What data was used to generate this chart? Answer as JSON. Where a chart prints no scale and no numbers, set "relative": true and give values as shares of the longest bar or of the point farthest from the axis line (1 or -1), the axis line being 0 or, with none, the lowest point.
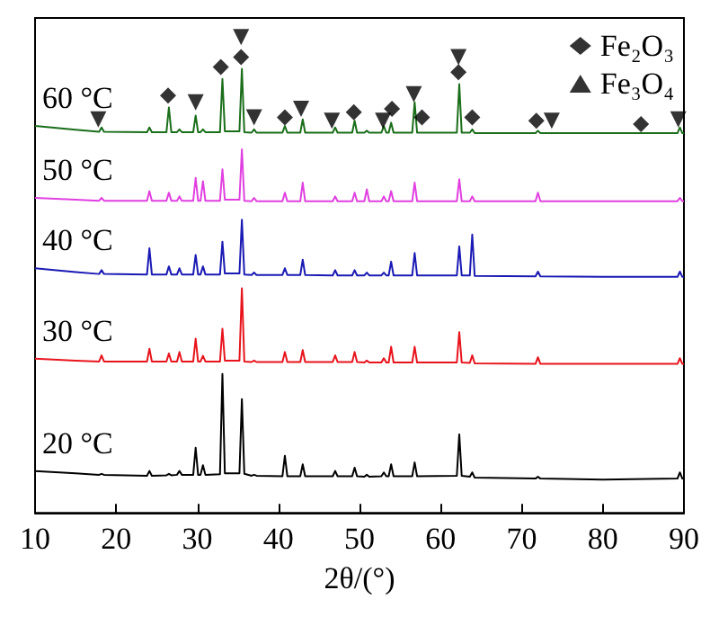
{
  "chart_data": {
    "type": "line",
    "xlabel": "2θ/(°)",
    "relative": true,
    "xlim": [
      10,
      90
    ],
    "xticks": [
      10,
      20,
      30,
      40,
      50,
      60,
      70,
      80,
      90
    ],
    "grid": false,
    "legend": "top right",
    "x": [
      10,
      15,
      17.9,
      18.2,
      18.5,
      23.8,
      24.1,
      24.4,
      26.2,
      26.5,
      26.8,
      27.5,
      27.8,
      28.1,
      29.5,
      29.8,
      30.1,
      30.4,
      30.7,
      31.0,
      32.8,
      33.1,
      33.4,
      35.2,
      35.5,
      35.8,
      36.7,
      37.0,
      37.3,
      40.5,
      40.8,
      41.1,
      42.7,
      43.0,
      43.3,
      46.7,
      47.0,
      47.3,
      49.1,
      49.4,
      49.7,
      50.6,
      50.9,
      51.2,
      52.7,
      53.0,
      53.3,
      53.6,
      53.9,
      54.2,
      56.5,
      56.8,
      57.1,
      62.0,
      62.3,
      62.6,
      63.6,
      63.9,
      64.2,
      71.7,
      72.0,
      72.3,
      80,
      89.2,
      89.5,
      89.8,
      90
    ],
    "series": [
      {
        "name": "20 °C",
        "color": "#000000",
        "values": [
          0.088,
          0.083,
          0.08,
          0.082,
          0.08,
          0.078,
          0.088,
          0.078,
          0.079,
          0.082,
          0.079,
          0.08,
          0.088,
          0.08,
          0.08,
          0.137,
          0.08,
          0.08,
          0.1,
          0.08,
          0.081,
          0.292,
          0.083,
          0.083,
          0.239,
          0.082,
          0.078,
          0.08,
          0.078,
          0.077,
          0.12,
          0.077,
          0.077,
          0.102,
          0.077,
          0.077,
          0.088,
          0.077,
          0.077,
          0.095,
          0.077,
          0.076,
          0.08,
          0.076,
          0.077,
          0.085,
          0.077,
          0.077,
          0.102,
          0.077,
          0.077,
          0.106,
          0.077,
          0.078,
          0.165,
          0.078,
          0.076,
          0.085,
          0.074,
          0.072,
          0.076,
          0.072,
          0.07,
          0.072,
          0.085,
          0.072,
          0.072
        ]
      },
      {
        "name": "30 °C",
        "color": "#e8141c",
        "values": [
          0.324,
          0.32,
          0.318,
          0.331,
          0.318,
          0.318,
          0.345,
          0.318,
          0.318,
          0.335,
          0.318,
          0.318,
          0.338,
          0.318,
          0.318,
          0.366,
          0.318,
          0.318,
          0.33,
          0.318,
          0.318,
          0.387,
          0.32,
          0.32,
          0.472,
          0.318,
          0.317,
          0.32,
          0.317,
          0.317,
          0.338,
          0.317,
          0.317,
          0.342,
          0.317,
          0.317,
          0.331,
          0.317,
          0.317,
          0.338,
          0.317,
          0.316,
          0.32,
          0.316,
          0.316,
          0.325,
          0.316,
          0.316,
          0.349,
          0.316,
          0.316,
          0.349,
          0.316,
          0.316,
          0.38,
          0.316,
          0.315,
          0.331,
          0.314,
          0.313,
          0.327,
          0.313,
          0.313,
          0.313,
          0.325,
          0.313,
          0.313
        ]
      },
      {
        "name": "40 °C",
        "color": "#1a1ab4",
        "values": [
          0.514,
          0.506,
          0.502,
          0.51,
          0.502,
          0.501,
          0.556,
          0.501,
          0.501,
          0.518,
          0.501,
          0.501,
          0.514,
          0.501,
          0.501,
          0.542,
          0.501,
          0.501,
          0.518,
          0.501,
          0.501,
          0.57,
          0.503,
          0.503,
          0.616,
          0.501,
          0.5,
          0.505,
          0.5,
          0.5,
          0.514,
          0.5,
          0.5,
          0.532,
          0.5,
          0.499,
          0.51,
          0.499,
          0.499,
          0.51,
          0.499,
          0.499,
          0.505,
          0.499,
          0.499,
          0.505,
          0.499,
          0.499,
          0.528,
          0.499,
          0.499,
          0.546,
          0.499,
          0.499,
          0.56,
          0.499,
          0.499,
          0.585,
          0.498,
          0.497,
          0.507,
          0.497,
          0.496,
          0.496,
          0.507,
          0.496,
          0.496
        ]
      },
      {
        "name": "50 °C",
        "color": "#e040e0",
        "values": [
          0.662,
          0.658,
          0.656,
          0.662,
          0.656,
          0.656,
          0.676,
          0.656,
          0.656,
          0.673,
          0.656,
          0.656,
          0.665,
          0.656,
          0.656,
          0.704,
          0.656,
          0.656,
          0.697,
          0.656,
          0.656,
          0.722,
          0.658,
          0.658,
          0.764,
          0.656,
          0.655,
          0.662,
          0.655,
          0.655,
          0.673,
          0.655,
          0.655,
          0.694,
          0.655,
          0.655,
          0.665,
          0.655,
          0.655,
          0.673,
          0.655,
          0.655,
          0.68,
          0.655,
          0.655,
          0.665,
          0.655,
          0.655,
          0.676,
          0.655,
          0.655,
          0.694,
          0.655,
          0.655,
          0.701,
          0.655,
          0.655,
          0.665,
          0.655,
          0.655,
          0.673,
          0.655,
          0.655,
          0.655,
          0.662,
          0.655,
          0.655
        ]
      },
      {
        "name": "60 °C",
        "color": "#1a6e1a",
        "values": [
          0.813,
          0.805,
          0.801,
          0.81,
          0.801,
          0.8,
          0.81,
          0.8,
          0.8,
          0.852,
          0.8,
          0.8,
          0.806,
          0.8,
          0.8,
          0.835,
          0.8,
          0.8,
          0.806,
          0.8,
          0.8,
          0.912,
          0.802,
          0.802,
          0.933,
          0.8,
          0.799,
          0.806,
          0.799,
          0.799,
          0.813,
          0.799,
          0.799,
          0.827,
          0.799,
          0.799,
          0.81,
          0.799,
          0.799,
          0.824,
          0.799,
          0.799,
          0.803,
          0.799,
          0.799,
          0.813,
          0.799,
          0.799,
          0.82,
          0.799,
          0.799,
          0.863,
          0.799,
          0.799,
          0.901,
          0.799,
          0.799,
          0.806,
          0.798,
          0.798,
          0.803,
          0.798,
          0.798,
          0.798,
          0.81,
          0.798,
          0.798
        ]
      },
      {
        "name": "Fe₂O₃",
        "type": "scatter",
        "marker": "diamond",
        "color": "#000000",
        "x": [
          26.4,
          32.9,
          35.4,
          40.8,
          49.3,
          54.0,
          57.7,
          62.2,
          63.9,
          71.8,
          84.7
        ],
        "values": [
          0.877,
          0.937,
          0.958,
          0.831,
          0.842,
          0.849,
          0.831,
          0.926,
          0.831,
          0.824,
          0.817
        ]
      },
      {
        "name": "Fe₃O₄",
        "type": "scatter",
        "marker": "triangle",
        "color": "#000000",
        "x": [
          17.8,
          29.8,
          35.4,
          37.0,
          42.8,
          46.6,
          52.9,
          56.7,
          62.2,
          73.7,
          89.3
        ],
        "values": [
          0.827,
          0.863,
          1.0,
          0.831,
          0.849,
          0.824,
          0.824,
          0.88,
          0.958,
          0.824,
          0.827
        ]
      }
    ]
  }
}
